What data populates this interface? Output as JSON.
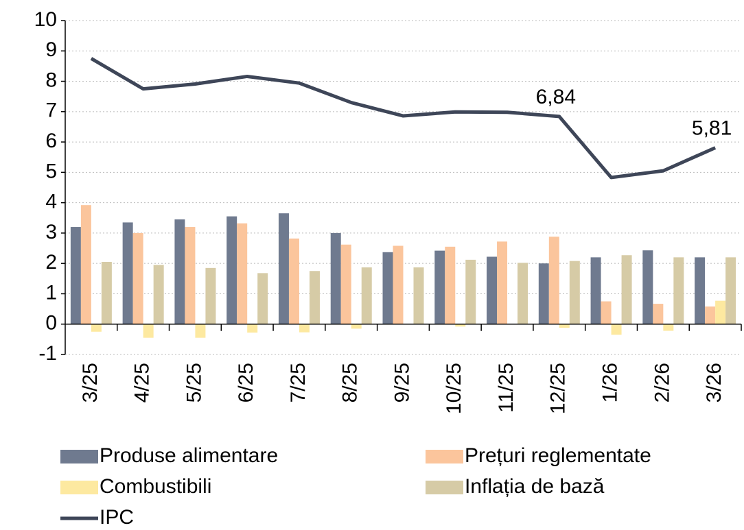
{
  "chart_data": {
    "type": "bar",
    "categories": [
      "3/25",
      "4/25",
      "5/25",
      "6/25",
      "7/25",
      "8/25",
      "9/25",
      "10/25",
      "11/25",
      "12/25",
      "1/26",
      "2/26",
      "3/26"
    ],
    "series": [
      {
        "name": "Produse alimentare",
        "color": "#6f7a8f",
        "values": [
          3.2,
          3.35,
          3.45,
          3.55,
          3.65,
          3.0,
          2.37,
          2.42,
          2.22,
          2.0,
          2.2,
          2.43,
          2.2
        ]
      },
      {
        "name": "Prețuri reglementate",
        "color": "#fbc59c",
        "values": [
          3.92,
          3.0,
          3.2,
          3.32,
          2.82,
          2.62,
          2.58,
          2.55,
          2.72,
          2.88,
          0.75,
          0.67,
          0.58
        ]
      },
      {
        "name": "Combustibili",
        "color": "#fde9a0",
        "values": [
          -0.25,
          -0.45,
          -0.45,
          -0.28,
          -0.27,
          -0.15,
          0,
          -0.08,
          0,
          -0.12,
          -0.35,
          -0.22,
          0.77
        ]
      },
      {
        "name": "Inflația de bază",
        "color": "#d6cba6",
        "values": [
          2.05,
          1.95,
          1.85,
          1.68,
          1.75,
          1.87,
          1.87,
          2.12,
          2.02,
          2.08,
          2.27,
          2.2,
          2.2
        ]
      },
      {
        "name": "IPC",
        "type": "line",
        "color": "#3e4658",
        "values": [
          8.75,
          7.75,
          7.91,
          8.16,
          7.94,
          7.3,
          6.86,
          6.99,
          6.98,
          6.84,
          4.83,
          5.05,
          5.81
        ],
        "value_labels": [
          null,
          null,
          null,
          null,
          null,
          null,
          null,
          null,
          null,
          "6,84",
          null,
          null,
          "5,81"
        ]
      }
    ],
    "ylim": [
      -1,
      10
    ],
    "yticks": [
      -1,
      0,
      1,
      2,
      3,
      4,
      5,
      6,
      7,
      8,
      9,
      10
    ],
    "grid": true
  }
}
